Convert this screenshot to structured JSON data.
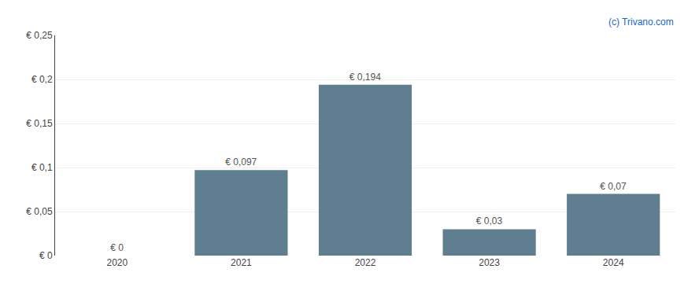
{
  "chart_data": {
    "type": "bar",
    "categories": [
      "2020",
      "2021",
      "2022",
      "2023",
      "2024"
    ],
    "values": [
      0.0,
      0.097,
      0.194,
      0.03,
      0.07
    ],
    "value_labels": [
      "€ 0",
      "€ 0,097",
      "€ 0,194",
      "€ 0,03",
      "€ 0,07"
    ],
    "data_labels": true,
    "color": "#5f7f90",
    "ylim": [
      0,
      0.25
    ],
    "yticks": [
      {
        "value": 0.0,
        "label": "€ 0"
      },
      {
        "value": 0.05,
        "label": "€ 0,05"
      },
      {
        "value": 0.1,
        "label": "€ 0,1"
      },
      {
        "value": 0.15,
        "label": "€ 0,15"
      },
      {
        "value": 0.2,
        "label": "€ 0,2"
      },
      {
        "value": 0.25,
        "label": "€ 0,25"
      }
    ],
    "grid": true,
    "annotations": [
      {
        "text": "(c) Trivano.com",
        "color": "#1a66cc"
      }
    ]
  }
}
